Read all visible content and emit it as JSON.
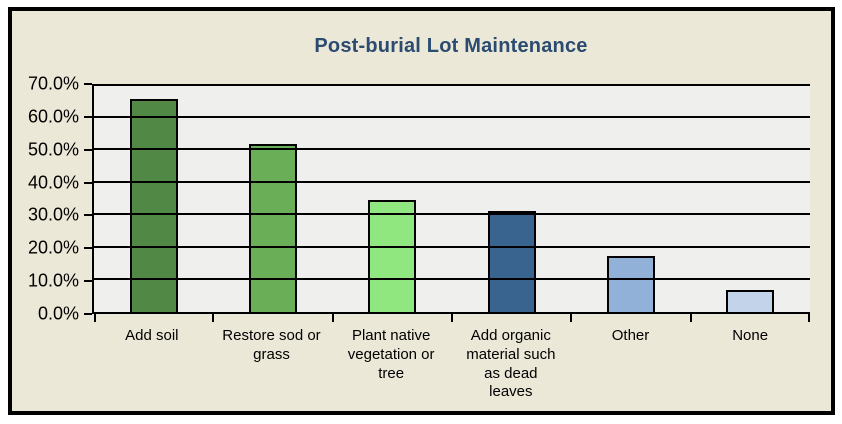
{
  "page": {
    "background": "#ffffff",
    "frame_border_color": "#000000",
    "frame_background": "#ece8d8"
  },
  "chart_data": {
    "type": "bar",
    "title": "Post-burial Lot Maintenance",
    "title_color": "#2b4c70",
    "categories": [
      "Add soil",
      "Restore sod or grass",
      "Plant native vegetation or tree",
      "Add organic material such as dead leaves",
      "Other",
      "None"
    ],
    "values": [
      65.5,
      51.7,
      34.5,
      31.0,
      17.2,
      6.9
    ],
    "unit": "%",
    "bar_colors": [
      "#528845",
      "#6aaf58",
      "#90e67f",
      "#38648f",
      "#92b1d8",
      "#c3d3ea"
    ],
    "bar_border_color": "#000000",
    "xlabel": "",
    "ylabel": "",
    "ylim": [
      0,
      70
    ],
    "yticks": [
      0,
      10,
      20,
      30,
      40,
      50,
      60,
      70
    ],
    "ytick_labels": [
      "0.0%",
      "10.0%",
      "20.0%",
      "30.0%",
      "40.0%",
      "50.0%",
      "60.0%",
      "70.0%"
    ],
    "grid": "horizontal",
    "gridline_color": "#000000",
    "plot_background": "#efefed",
    "legend": "none"
  }
}
